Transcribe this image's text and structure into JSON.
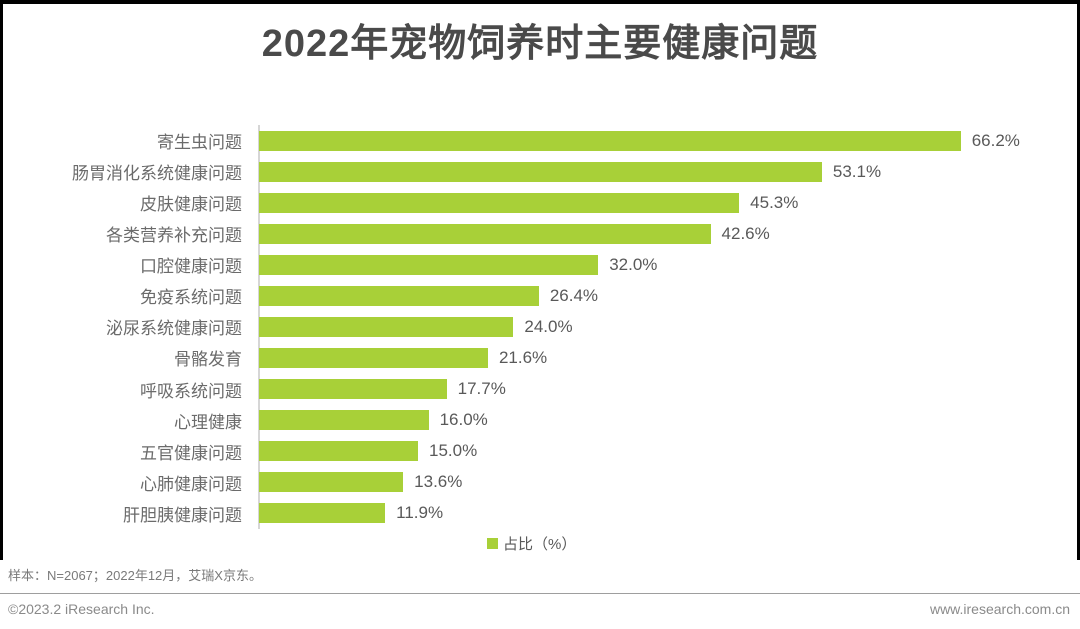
{
  "title": "2022年宠物饲养时主要健康问题",
  "colors": {
    "bar": "#a8d038",
    "title_text": "#4a4a4a",
    "label_text": "#6b6b6b",
    "value_text": "#595959"
  },
  "chart_data": {
    "type": "bar",
    "orientation": "horizontal",
    "title": "2022年宠物饲养时主要健康问题",
    "categories": [
      "寄生虫问题",
      "肠胃消化系统健康问题",
      "皮肤健康问题",
      "各类营养补充问题",
      "口腔健康问题",
      "免疫系统问题",
      "泌尿系统健康问题",
      "骨骼发育",
      "呼吸系统问题",
      "心理健康",
      "五官健康问题",
      "心肺健康问题",
      "肝胆胰健康问题"
    ],
    "values": [
      66.2,
      53.1,
      45.3,
      42.6,
      32.0,
      26.4,
      24.0,
      21.6,
      17.7,
      16.0,
      15.0,
      13.6,
      11.9
    ],
    "value_labels": [
      "66.2%",
      "53.1%",
      "45.3%",
      "42.6%",
      "32.0%",
      "26.4%",
      "24.0%",
      "21.6%",
      "17.7%",
      "16.0%",
      "15.0%",
      "13.6%",
      "11.9%"
    ],
    "legend": "占比（%）",
    "legend_position": "bottom-center",
    "xlabel": "",
    "ylabel": "",
    "xlim": [
      0,
      70
    ],
    "grid": false,
    "data_labels": true
  },
  "footnote": "样本：N=2067；2022年12月，艾瑞X京东。",
  "footer": {
    "left": "©2023.2 iResearch Inc.",
    "right": "www.iresearch.com.cn"
  }
}
